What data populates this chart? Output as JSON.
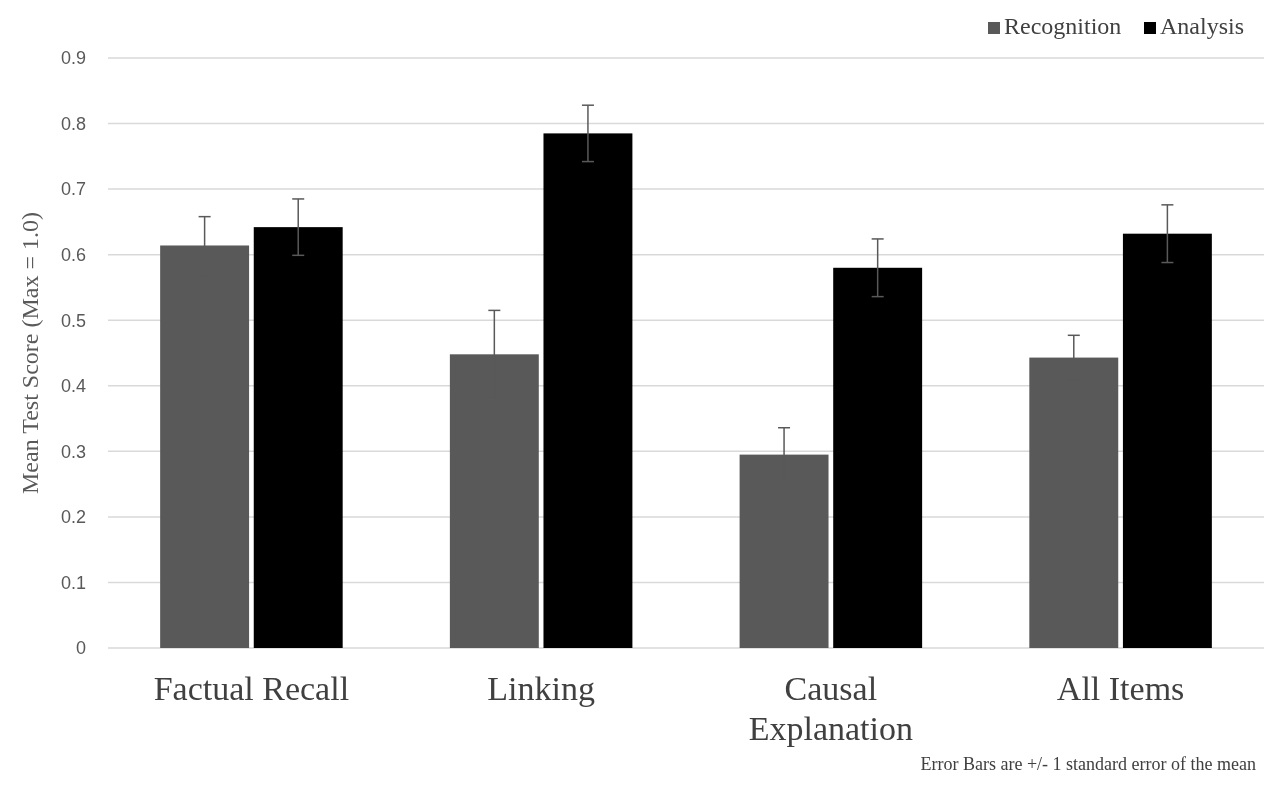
{
  "chart_data": {
    "type": "bar",
    "ylabel": "Mean Test Score (Max = 1.0)",
    "categories": [
      "Factual Recall",
      "Linking",
      "Causal Explanation",
      "All Items"
    ],
    "series": [
      {
        "name": "Recognition",
        "color": "#595959",
        "values": [
          0.614,
          0.448,
          0.295,
          0.443
        ],
        "errors": [
          0.044,
          0.067,
          0.041,
          0.034
        ]
      },
      {
        "name": "Analysis",
        "color": "#000000",
        "values": [
          0.642,
          0.785,
          0.58,
          0.632
        ],
        "errors": [
          0.043,
          0.043,
          0.044,
          0.044
        ]
      }
    ],
    "ylim": [
      0,
      0.9
    ],
    "yticks": [
      0,
      0.1,
      0.2,
      0.3,
      0.4,
      0.5,
      0.6,
      0.7,
      0.8,
      0.9
    ],
    "grid": "y",
    "legend": "top right",
    "annotations": [
      "Error Bars are +/- 1 standard error of the mean"
    ]
  }
}
